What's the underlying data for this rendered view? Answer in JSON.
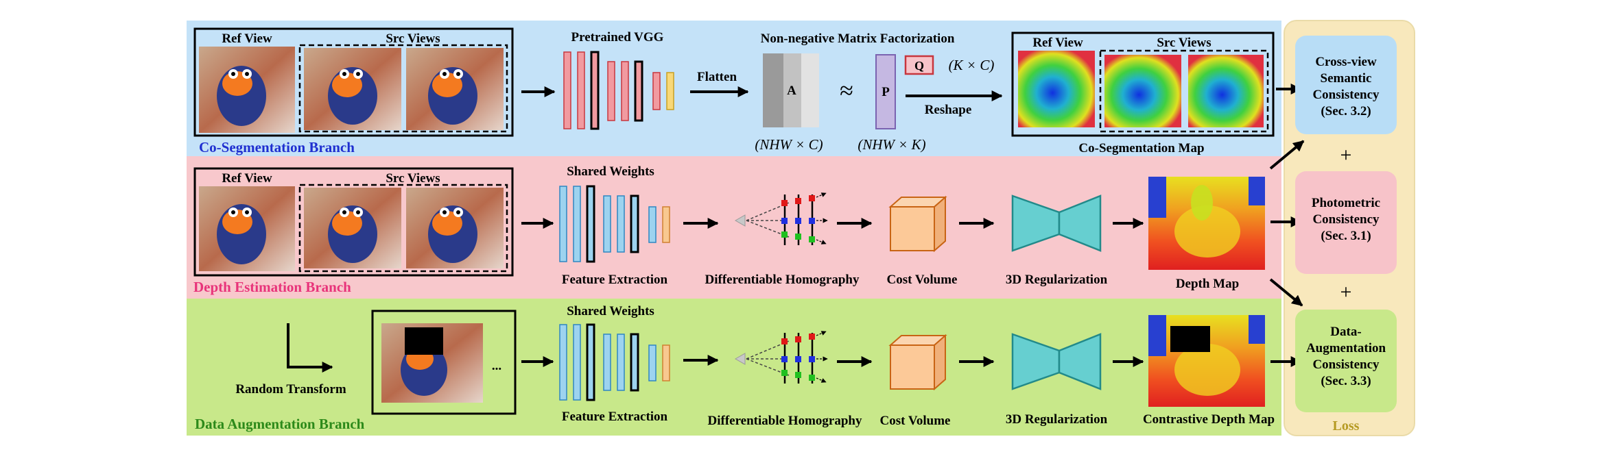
{
  "colors": {
    "coseg_bg": "#c4e2f8",
    "depth_bg": "#f8c8cc",
    "aug_bg": "#c8e88a",
    "loss_bg": "#f8e8bc",
    "loss_text": "#b59a22",
    "coseg_title": "#1f2fd0",
    "depth_title": "#e8337a",
    "aug_title": "#2d8a1a",
    "semantic_box": "#b8ddf6",
    "photometric_box": "#f7c3c9",
    "augconsist_box": "#c8e88a"
  },
  "coseg": {
    "ref_label": "Ref View",
    "src_label": "Src Views",
    "branch_title": "Co-Segmentation Branch",
    "vgg_label": "Pretrained VGG",
    "flatten_label": "Flatten",
    "nmf_label": "Non-negative Matrix Factorization",
    "matrix_a": "A",
    "matrix_p": "P",
    "matrix_q": "Q",
    "approx": "≈",
    "a_dims": "(NHW × C)",
    "p_dims": "(NHW × K)",
    "q_dims": "(K × C)",
    "reshape_label": "Reshape",
    "map_ref_label": "Ref View",
    "map_src_label": "Src Views",
    "map_caption": "Co-Segmentation Map"
  },
  "depth": {
    "ref_label": "Ref View",
    "src_label": "Src Views",
    "branch_title": "Depth Estimation Branch",
    "shared_label": "Shared Weights",
    "feature_label": "Feature Extraction",
    "homography_label": "Differentiable Homography",
    "cost_label": "Cost Volume",
    "reg_label": "3D Regularization",
    "map_label": "Depth Map"
  },
  "aug": {
    "transform_label": "Random Transform",
    "ellipsis": "...",
    "branch_title": "Data Augmentation Branch",
    "shared_label": "Shared Weights",
    "feature_label": "Feature Extraction",
    "homography_label": "Differentiable Homography",
    "cost_label": "Cost Volume",
    "reg_label": "3D Regularization",
    "map_label": "Contrastive Depth Map"
  },
  "loss": {
    "semantic_lines": [
      "Cross-view",
      "Semantic",
      "Consistency",
      "(Sec. 3.2)"
    ],
    "photometric_lines": [
      "Photometric",
      "Consistency",
      "(Sec. 3.1)"
    ],
    "augconsist_lines": [
      "Data-",
      "Augmentation",
      "Consistency",
      "(Sec. 3.3)"
    ],
    "plus": "+",
    "title": "Loss"
  }
}
